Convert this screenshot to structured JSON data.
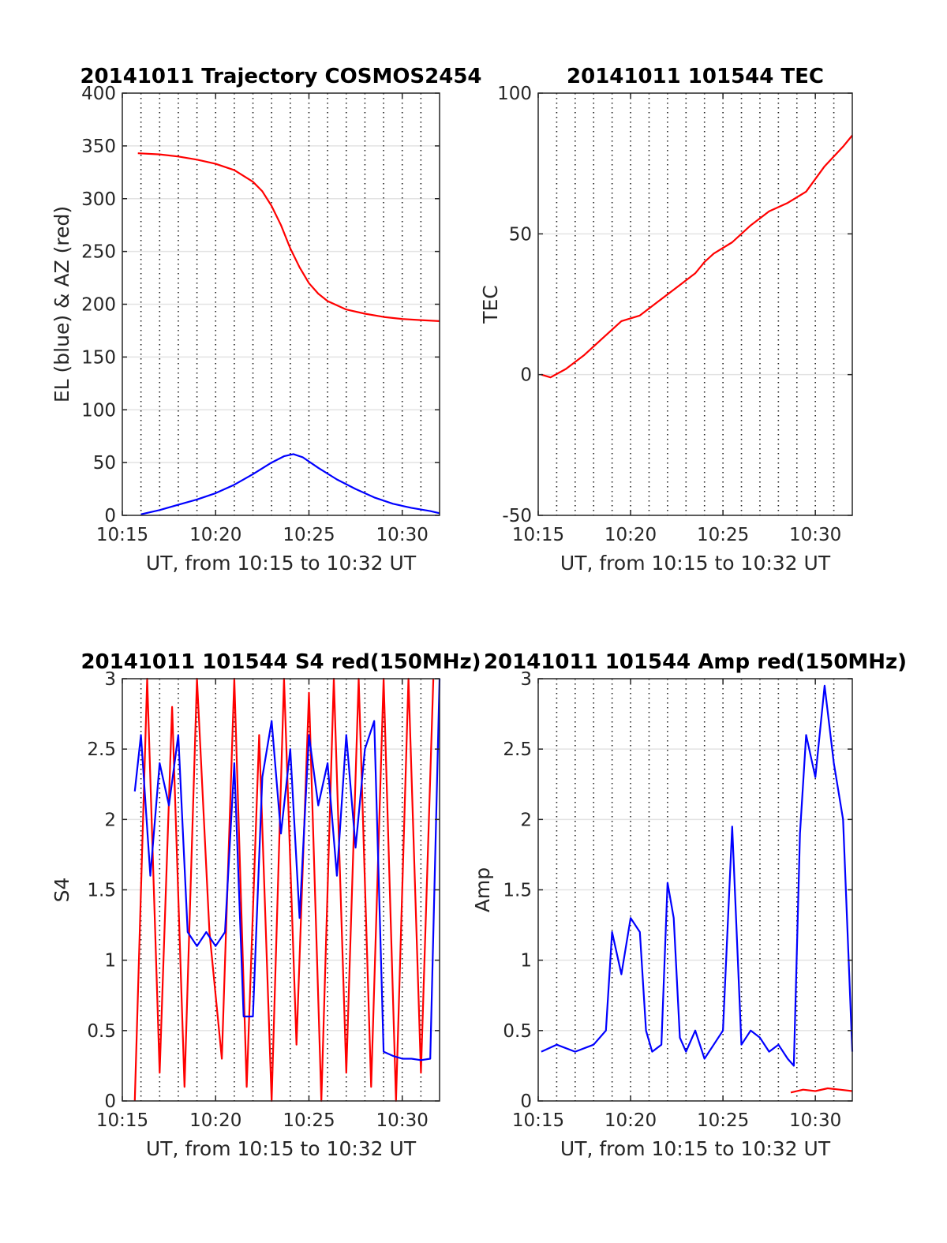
{
  "chart_data": [
    {
      "type": "line",
      "title": "20141011 Trajectory COSMOS2454",
      "xlabel": "UT, from 10:15 to 10:32 UT",
      "ylabel": "EL (blue) & AZ (red)",
      "xlim": [
        "10:15",
        "10:32"
      ],
      "ylim": [
        0,
        400
      ],
      "xticks": [
        "10:15",
        "10:20",
        "10:25",
        "10:30"
      ],
      "yticks": [
        0,
        50,
        100,
        150,
        200,
        250,
        300,
        350,
        400
      ],
      "grid": true,
      "series": [
        {
          "color": "#ff0000",
          "x": [
            "10:15:50",
            "10:17:00",
            "10:18:00",
            "10:19:00",
            "10:20:00",
            "10:21:00",
            "10:22:00",
            "10:22:30",
            "10:23:00",
            "10:23:30",
            "10:24:00",
            "10:24:30",
            "10:25:00",
            "10:25:30",
            "10:26:00",
            "10:27:00",
            "10:28:00",
            "10:29:00",
            "10:30:00",
            "10:31:00",
            "10:32:00"
          ],
          "values": [
            343,
            342,
            340,
            337,
            333,
            327,
            316,
            307,
            293,
            275,
            253,
            235,
            220,
            210,
            203,
            195,
            191,
            188,
            186,
            185,
            184
          ]
        },
        {
          "color": "#0000ff",
          "x": [
            "10:16:00",
            "10:17:00",
            "10:18:00",
            "10:19:00",
            "10:20:00",
            "10:21:00",
            "10:22:00",
            "10:23:00",
            "10:23:40",
            "10:24:10",
            "10:24:40",
            "10:25:30",
            "10:26:30",
            "10:27:30",
            "10:28:30",
            "10:29:30",
            "10:30:30",
            "10:31:30",
            "10:32:00"
          ],
          "values": [
            1,
            5,
            10,
            15,
            21,
            29,
            39,
            50,
            56,
            58,
            55,
            45,
            34,
            25,
            17,
            11,
            7,
            4,
            2
          ]
        }
      ]
    },
    {
      "type": "line",
      "title": "20141011 101544 TEC",
      "xlabel": "UT, from 10:15 to 10:32 UT",
      "ylabel": "TEC",
      "xlim": [
        "10:15",
        "10:32"
      ],
      "ylim": [
        -50,
        100
      ],
      "xticks": [
        "10:15",
        "10:20",
        "10:25",
        "10:30"
      ],
      "yticks": [
        -50,
        0,
        50,
        100
      ],
      "grid": true,
      "series": [
        {
          "color": "#ff0000",
          "x": [
            "10:15:10",
            "10:15:40",
            "10:16:30",
            "10:17:30",
            "10:18:30",
            "10:19:30",
            "10:20:30",
            "10:21:30",
            "10:22:30",
            "10:23:30",
            "10:24:00",
            "10:24:30",
            "10:25:30",
            "10:26:30",
            "10:27:30",
            "10:28:30",
            "10:29:30",
            "10:30:30",
            "10:31:30",
            "10:32:00"
          ],
          "values": [
            0,
            -1,
            2,
            7,
            13,
            19,
            21,
            26,
            31,
            36,
            40,
            43,
            47,
            53,
            58,
            61,
            65,
            74,
            81,
            85
          ]
        }
      ]
    },
    {
      "type": "line",
      "title": "20141011 101544 S4 red(150MHz)",
      "xlabel": "UT, from 10:15 to 10:32 UT",
      "ylabel": "S4",
      "xlim": [
        "10:15",
        "10:32"
      ],
      "ylim": [
        0,
        3
      ],
      "xticks": [
        "10:15",
        "10:20",
        "10:25",
        "10:30"
      ],
      "yticks": [
        0,
        0.5,
        1,
        1.5,
        2,
        2.5,
        3
      ],
      "grid": true,
      "series": [
        {
          "color": "#ff0000",
          "x": [
            "10:15:40",
            "10:16:20",
            "10:17:00",
            "10:17:40",
            "10:18:20",
            "10:19:00",
            "10:19:40",
            "10:20:20",
            "10:21:00",
            "10:21:40",
            "10:22:20",
            "10:23:00",
            "10:23:40",
            "10:24:20",
            "10:25:00",
            "10:25:40",
            "10:26:20",
            "10:27:00",
            "10:27:40",
            "10:28:20",
            "10:29:00",
            "10:29:40",
            "10:30:20",
            "10:31:00",
            "10:31:40"
          ],
          "values": [
            0,
            3,
            0.2,
            2.8,
            0.1,
            3,
            1.2,
            0.3,
            3,
            0.1,
            2.6,
            0,
            3,
            0.4,
            2.9,
            0,
            3,
            0.2,
            3,
            0.1,
            3,
            0,
            3,
            0.2,
            3
          ]
        },
        {
          "color": "#0000ff",
          "x": [
            "10:15:40",
            "10:16:00",
            "10:16:30",
            "10:17:00",
            "10:17:30",
            "10:18:00",
            "10:18:30",
            "10:19:00",
            "10:19:30",
            "10:20:00",
            "10:20:30",
            "10:21:00",
            "10:21:30",
            "10:22:00",
            "10:22:30",
            "10:23:00",
            "10:23:30",
            "10:24:00",
            "10:24:30",
            "10:25:00",
            "10:25:30",
            "10:26:00",
            "10:26:30",
            "10:27:00",
            "10:27:30",
            "10:28:00",
            "10:28:30",
            "10:29:00",
            "10:29:30",
            "10:30:00",
            "10:30:30",
            "10:31:00",
            "10:31:30",
            "10:32:00"
          ],
          "values": [
            2.2,
            2.6,
            1.6,
            2.4,
            2.1,
            2.6,
            1.2,
            1.1,
            1.2,
            1.1,
            1.2,
            2.4,
            0.6,
            0.6,
            2.3,
            2.7,
            1.9,
            2.5,
            1.3,
            2.6,
            2.1,
            2.4,
            1.6,
            2.6,
            1.8,
            2.5,
            2.7,
            0.35,
            0.32,
            0.3,
            0.3,
            0.29,
            0.3,
            3
          ]
        }
      ]
    },
    {
      "type": "line",
      "title": "20141011 101544 Amp red(150MHz)",
      "xlabel": "UT, from 10:15 to 10:32 UT",
      "ylabel": "Amp",
      "xlim": [
        "10:15",
        "10:32"
      ],
      "ylim": [
        0,
        3
      ],
      "xticks": [
        "10:15",
        "10:20",
        "10:25",
        "10:30"
      ],
      "yticks": [
        0,
        0.5,
        1,
        1.5,
        2,
        2.5,
        3
      ],
      "grid": true,
      "series": [
        {
          "color": "#ff0000",
          "x": [
            "10:28:40",
            "10:29:20",
            "10:30:00",
            "10:30:40",
            "10:31:20",
            "10:32:00"
          ],
          "values": [
            0.06,
            0.08,
            0.07,
            0.09,
            0.08,
            0.07
          ]
        },
        {
          "color": "#0000ff",
          "x": [
            "10:15:10",
            "10:16:00",
            "10:17:00",
            "10:18:00",
            "10:18:40",
            "10:19:00",
            "10:19:30",
            "10:20:00",
            "10:20:30",
            "10:20:50",
            "10:21:10",
            "10:21:40",
            "10:22:00",
            "10:22:20",
            "10:22:40",
            "10:23:00",
            "10:23:30",
            "10:24:00",
            "10:24:30",
            "10:25:00",
            "10:25:30",
            "10:26:00",
            "10:26:30",
            "10:27:00",
            "10:27:30",
            "10:28:00",
            "10:28:30",
            "10:28:50",
            "10:29:10",
            "10:29:30",
            "10:30:00",
            "10:30:30",
            "10:31:00",
            "10:31:30",
            "10:32:00"
          ],
          "values": [
            0.35,
            0.4,
            0.35,
            0.4,
            0.5,
            1.2,
            0.9,
            1.3,
            1.2,
            0.5,
            0.35,
            0.4,
            1.55,
            1.3,
            0.45,
            0.35,
            0.5,
            0.3,
            0.4,
            0.5,
            1.95,
            0.4,
            0.5,
            0.45,
            0.35,
            0.4,
            0.3,
            0.25,
            1.9,
            2.6,
            2.3,
            2.95,
            2.4,
            2.0,
            0.35
          ]
        }
      ]
    }
  ]
}
